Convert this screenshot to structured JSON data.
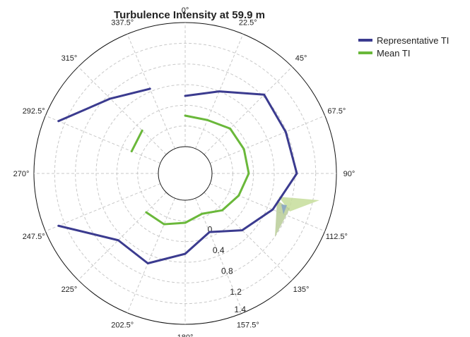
{
  "chart_data": {
    "type": "polar-line",
    "title": "Turbulence Intensity at 59.9 m",
    "direction_labels": [
      "0°",
      "22.5°",
      "45°",
      "67.5°",
      "90°",
      "112.5°",
      "135°",
      "157.5°",
      "180°",
      "202.5°",
      "225°",
      "247.5°",
      "270°",
      "292.5°",
      "315°",
      "337.5°"
    ],
    "radial_tick_labels": [
      "0",
      "0.4",
      "0.8",
      "1.2",
      "1.4"
    ],
    "radial_axis_angle_deg": 157.5,
    "rlim": [
      -0.6,
      1.6
    ],
    "grid": true,
    "legend_position": "top-right",
    "series": [
      {
        "name": "Representative TI",
        "color": "#3b3b8f",
        "points": [
          {
            "direction": 0,
            "ti": 0.3
          },
          {
            "direction": 22.5,
            "ti": 0.5
          },
          {
            "direction": 45,
            "ti": 0.9
          },
          {
            "direction": 67.5,
            "ti": 0.85
          },
          {
            "direction": 90,
            "ti": 0.9
          },
          {
            "direction": 112.5,
            "ti": 0.6
          },
          {
            "direction": 135,
            "ti": 0.35
          },
          {
            "direction": 157.5,
            "ti": 0.05
          },
          {
            "direction": 180,
            "ti": 0.35
          },
          {
            "direction": 202.5,
            "ti": 0.65
          },
          {
            "direction": 225,
            "ti": 0.6
          },
          {
            "direction": 247.5,
            "ti": 1.35
          },
          {
            "direction": 270,
            "ti": null
          },
          {
            "direction": 292.5,
            "ti": 1.35
          },
          {
            "direction": 315,
            "ti": 0.8
          },
          {
            "direction": 337.5,
            "ti": 0.55
          }
        ]
      },
      {
        "name": "Mean TI",
        "color": "#6ab83a",
        "points": [
          {
            "direction": 0,
            "ti": -0.05
          },
          {
            "direction": 22.5,
            "ti": -0.05
          },
          {
            "direction": 45,
            "ti": 0.05
          },
          {
            "direction": 67.5,
            "ti": 0.05
          },
          {
            "direction": 90,
            "ti": 0.05
          },
          {
            "direction": 112.5,
            "ti": -0.05
          },
          {
            "direction": 135,
            "ti": -0.15
          },
          {
            "direction": 157.5,
            "ti": -0.3
          },
          {
            "direction": 180,
            "ti": -0.2
          },
          {
            "direction": 202.5,
            "ti": -0.1
          },
          {
            "direction": 225,
            "ti": -0.1
          },
          {
            "direction": 247.5,
            "ti": null
          },
          {
            "direction": 270,
            "ti": null
          },
          {
            "direction": 292.5,
            "ti": -0.05
          },
          {
            "direction": 315,
            "ti": 0.0
          },
          {
            "direction": 337.5,
            "ti": null
          }
        ]
      }
    ]
  },
  "legend": {
    "items": [
      {
        "label": "Representative TI",
        "color": "#3b3b8f"
      },
      {
        "label": "Mean TI",
        "color": "#6ab83a"
      }
    ]
  }
}
